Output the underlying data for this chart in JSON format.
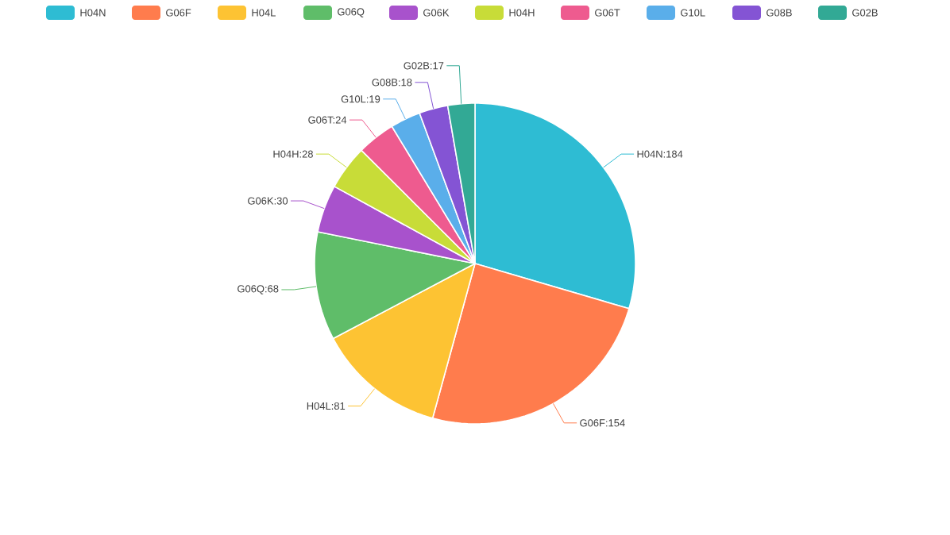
{
  "chart_data": {
    "type": "pie",
    "categories": [
      "H04N",
      "G06F",
      "H04L",
      "G06Q",
      "G06K",
      "H04H",
      "G06T",
      "G10L",
      "G08B",
      "G02B"
    ],
    "values": [
      184,
      154,
      81,
      68,
      30,
      28,
      24,
      19,
      18,
      17
    ],
    "colors": [
      "#2ebcd3",
      "#ff7c4d",
      "#fdc333",
      "#5fbd69",
      "#a852cc",
      "#c8dc38",
      "#ee5b8f",
      "#5aaeea",
      "#8454d4",
      "#32a995"
    ],
    "value_labels": [
      "H04N:184",
      "G06F:154",
      "H04L:81",
      "G06Q:68",
      "G06K:30",
      "H04H:28",
      "G06T:24",
      "G10L:19",
      "G08B:18",
      "G02B:17"
    ],
    "legend": "top"
  }
}
